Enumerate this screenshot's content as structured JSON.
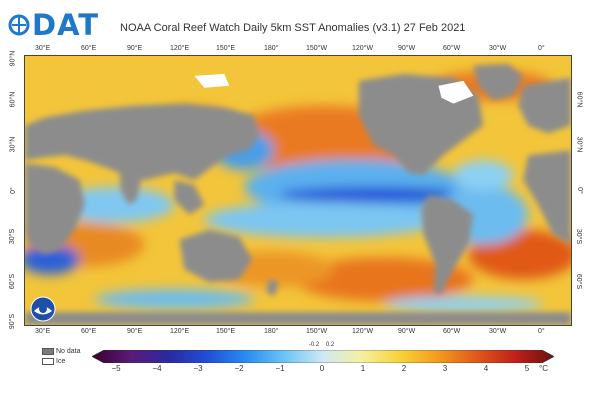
{
  "logo": {
    "text": "DAT",
    "color": "#1f78c8"
  },
  "title": "NOAA Coral Reef Watch Daily 5km SST Anomalies  (v3.1)   27 Feb 2021",
  "lon_ticks": [
    "30°E",
    "60°E",
    "90°E",
    "120°E",
    "150°E",
    "180°",
    "150°W",
    "120°W",
    "90°W",
    "60°W",
    "30°W",
    "0°"
  ],
  "lat_ticks_left": [
    "90°S",
    "60°S",
    "30°S",
    "0°",
    "30°N",
    "60°N",
    "90°N"
  ],
  "lat_ticks_right": [
    "60°S",
    "30°S",
    "0°",
    "30°N",
    "60°N"
  ],
  "legend": {
    "no_data": "No data",
    "ice": "Ice",
    "no_data_color": "#7a7a7a",
    "ice_color": "#ffffff"
  },
  "colorbar": {
    "ticks": [
      "−5",
      "−4",
      "−3",
      "−2",
      "−1",
      "0",
      "1",
      "2",
      "3",
      "4",
      "5"
    ],
    "small_ticks": [
      "-0.2",
      "0.2"
    ],
    "unit": "°C",
    "stops": [
      "#3a0030",
      "#5a1a78",
      "#2a2aa0",
      "#1f4fd6",
      "#2a8cf0",
      "#6cc4f5",
      "#cfe8f5",
      "#f5f0a0",
      "#f8d23a",
      "#f39a1c",
      "#e0581a",
      "#c0201a",
      "#6a1010"
    ]
  },
  "colors": {
    "land": "#8c8c8c",
    "ocean_warm": "#f5b52a",
    "ocean_hot": "#e06a1f",
    "ocean_cool": "#5ab0ee",
    "ocean_cold": "#1f4fd6"
  }
}
